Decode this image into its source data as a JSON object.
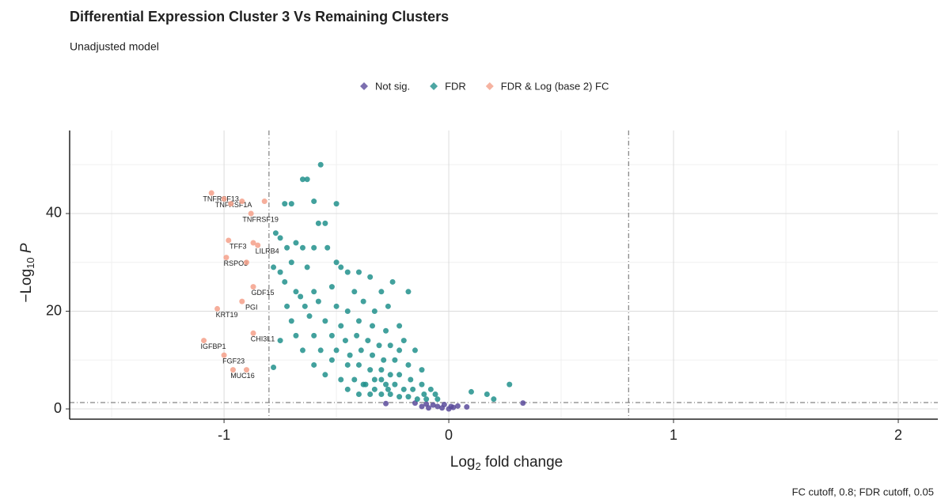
{
  "chart_data": {
    "type": "scatter",
    "title": "Differential Expression Cluster 3 Vs Remaining Clusters",
    "subtitle": "Unadjusted model",
    "xlabel": [
      "Log",
      "2",
      " fold change"
    ],
    "ylabel": [
      "−Log",
      "10",
      " P"
    ],
    "caption": "FC cutoff, 0.8;  FDR cutoff, 0.05",
    "xlim": [
      -1.687,
      2.176
    ],
    "ylim": [
      -2.1,
      57
    ],
    "xticks": [
      -1,
      0,
      1,
      2
    ],
    "yticks": [
      0,
      20,
      40
    ],
    "minor_xticks": [
      -1.5,
      -0.5,
      0.5,
      1.5
    ],
    "minor_yticks": [
      10,
      30,
      50
    ],
    "grid": true,
    "vlines": [
      -0.8,
      0.8
    ],
    "hline": 1.3,
    "legend": "top",
    "series": [
      {
        "name": "Not sig.",
        "color": "#5b4b9b",
        "x": [
          -0.15,
          -0.1,
          -0.07,
          -0.05,
          -0.03,
          0,
          0.02,
          0.04,
          -0.02,
          -0.12,
          0.08,
          0.33,
          -0.28,
          -0.09,
          0.01
        ],
        "y": [
          1.2,
          1,
          0.8,
          0.5,
          0.2,
          0,
          0.3,
          0.6,
          0.9,
          0.5,
          0.4,
          1.2,
          1.1,
          0.2,
          0.5
        ]
      },
      {
        "name": "FDR",
        "color": "#21908c",
        "x": [
          -0.57,
          -0.63,
          -0.65,
          -0.5,
          -0.73,
          -0.7,
          -0.6,
          -0.55,
          -0.58,
          -0.77,
          -0.75,
          -0.72,
          -0.68,
          -0.65,
          -0.6,
          -0.54,
          -0.78,
          -0.75,
          -0.7,
          -0.63,
          -0.5,
          -0.48,
          -0.45,
          -0.4,
          -0.35,
          -0.25,
          -0.73,
          -0.68,
          -0.66,
          -0.6,
          -0.52,
          -0.42,
          -0.3,
          -0.18,
          -0.72,
          -0.64,
          -0.58,
          -0.5,
          -0.45,
          -0.38,
          -0.33,
          -0.27,
          -0.7,
          -0.62,
          -0.55,
          -0.48,
          -0.4,
          -0.34,
          -0.28,
          -0.22,
          -0.2,
          -0.68,
          -0.6,
          -0.52,
          -0.46,
          -0.41,
          -0.36,
          -0.31,
          -0.26,
          -0.22,
          -0.15,
          -0.75,
          -0.65,
          -0.57,
          -0.5,
          -0.44,
          -0.39,
          -0.34,
          -0.29,
          -0.24,
          -0.18,
          -0.12,
          -0.6,
          -0.52,
          -0.45,
          -0.4,
          -0.35,
          -0.3,
          -0.26,
          -0.22,
          -0.17,
          -0.12,
          -0.08,
          -0.55,
          -0.48,
          -0.42,
          -0.37,
          -0.33,
          -0.28,
          -0.24,
          -0.2,
          -0.16,
          -0.11,
          -0.06,
          -0.45,
          -0.4,
          -0.35,
          -0.3,
          -0.26,
          -0.22,
          -0.18,
          -0.14,
          -0.1,
          -0.05,
          -0.78,
          0.1,
          0.2,
          0.27,
          0.17,
          -0.38,
          -0.33,
          -0.3,
          -0.27
        ],
        "y": [
          50,
          47,
          47,
          42,
          42,
          42,
          42.5,
          38,
          38,
          36,
          35,
          33,
          34,
          33,
          33,
          33,
          29,
          28,
          30,
          29,
          30,
          29,
          28,
          28,
          27,
          26,
          26,
          24,
          23,
          24,
          25,
          24,
          24,
          24,
          21,
          21,
          22,
          21,
          20,
          22,
          20,
          21,
          18,
          19,
          18,
          17,
          18,
          17,
          16,
          17,
          14,
          15,
          15,
          15,
          14,
          15,
          14,
          13,
          13,
          12,
          12,
          14,
          12,
          12,
          12,
          11,
          12,
          11,
          10,
          10,
          9,
          8,
          9,
          10,
          9,
          9,
          8,
          8,
          7,
          7,
          6,
          5,
          4,
          7,
          6,
          6,
          5,
          6,
          5,
          5,
          4,
          4,
          3,
          3,
          4,
          3,
          3,
          3,
          3,
          2.5,
          2.5,
          2,
          2,
          2,
          8.5,
          3.5,
          2,
          5,
          3,
          5,
          4,
          6,
          4
        ]
      },
      {
        "name": "FDR & Log (base 2) FC",
        "color": "#f4a08a",
        "x": [
          -1.056,
          -1.0,
          -0.97,
          -0.92,
          -0.82,
          -0.88,
          -0.98,
          -0.85,
          -0.87,
          -0.99,
          -0.9,
          -0.87,
          -0.92,
          -1.03,
          -0.87,
          -1.09,
          -1.0,
          -0.96,
          -0.9
        ],
        "y": [
          44.2,
          43,
          42,
          42.5,
          42.5,
          40,
          34.5,
          33.5,
          34,
          31,
          30,
          25,
          22,
          20.5,
          15.5,
          14,
          11,
          8,
          8
        ],
        "labels": [
          "TNFRSF13",
          "TNFRSF1A",
          null,
          null,
          null,
          "TNFRSF19",
          "TFF3",
          "LILRB4",
          null,
          "RSPO3",
          null,
          "GDF15",
          "PGI",
          "KRT19",
          "CHI3L1",
          "IGFBP1",
          "FGF23",
          "MUC16",
          null
        ]
      }
    ]
  }
}
